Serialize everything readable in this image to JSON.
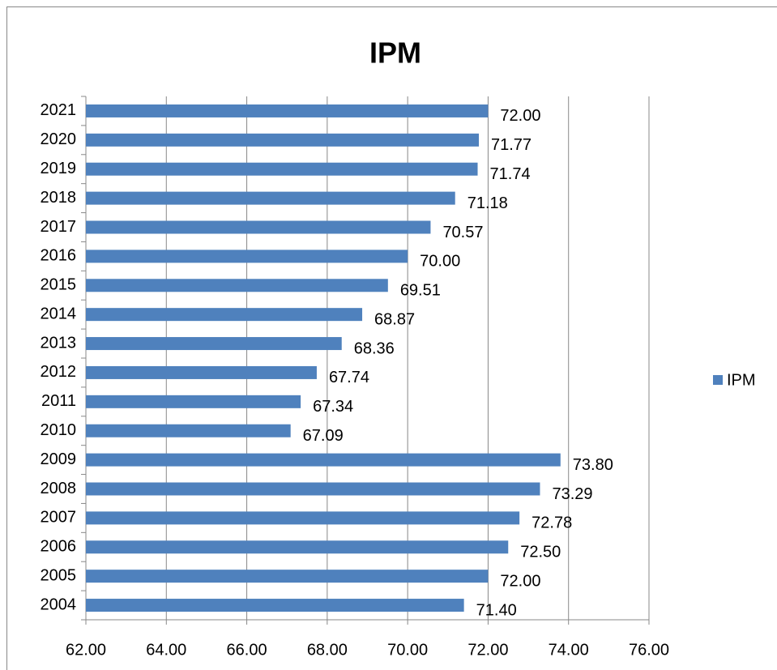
{
  "chart_data": {
    "type": "bar",
    "orientation": "horizontal",
    "title": "IPM",
    "categories": [
      "2004",
      "2005",
      "2006",
      "2007",
      "2008",
      "2009",
      "2010",
      "2011",
      "2012",
      "2013",
      "2014",
      "2015",
      "2016",
      "2017",
      "2018",
      "2019",
      "2020",
      "2021"
    ],
    "series": [
      {
        "name": "IPM",
        "color": "#4f81bd",
        "values": [
          71.4,
          72.0,
          72.5,
          72.78,
          73.29,
          73.8,
          67.09,
          67.34,
          67.74,
          68.36,
          68.87,
          69.51,
          70.0,
          70.57,
          71.18,
          71.74,
          71.77,
          72.0
        ],
        "value_labels": [
          "71.40",
          "72.00",
          "72.50",
          "72.78",
          "73.29",
          "73.80",
          "67.09",
          "67.34",
          "67.74",
          "68.36",
          "68.87",
          "69.51",
          "70.00",
          "70.57",
          "71.18",
          "71.74",
          "71.77",
          "72.00"
        ]
      }
    ],
    "xlim": [
      62,
      76
    ],
    "xticks": [
      {
        "value": 62,
        "label": "62.00"
      },
      {
        "value": 64,
        "label": "64.00"
      },
      {
        "value": 66,
        "label": "66.00"
      },
      {
        "value": 68,
        "label": "68.00"
      },
      {
        "value": 70,
        "label": "70.00"
      },
      {
        "value": 72,
        "label": "72.00"
      },
      {
        "value": 74,
        "label": "74.00"
      },
      {
        "value": 76,
        "label": "76.00"
      }
    ],
    "grid": true,
    "legend": "right"
  }
}
